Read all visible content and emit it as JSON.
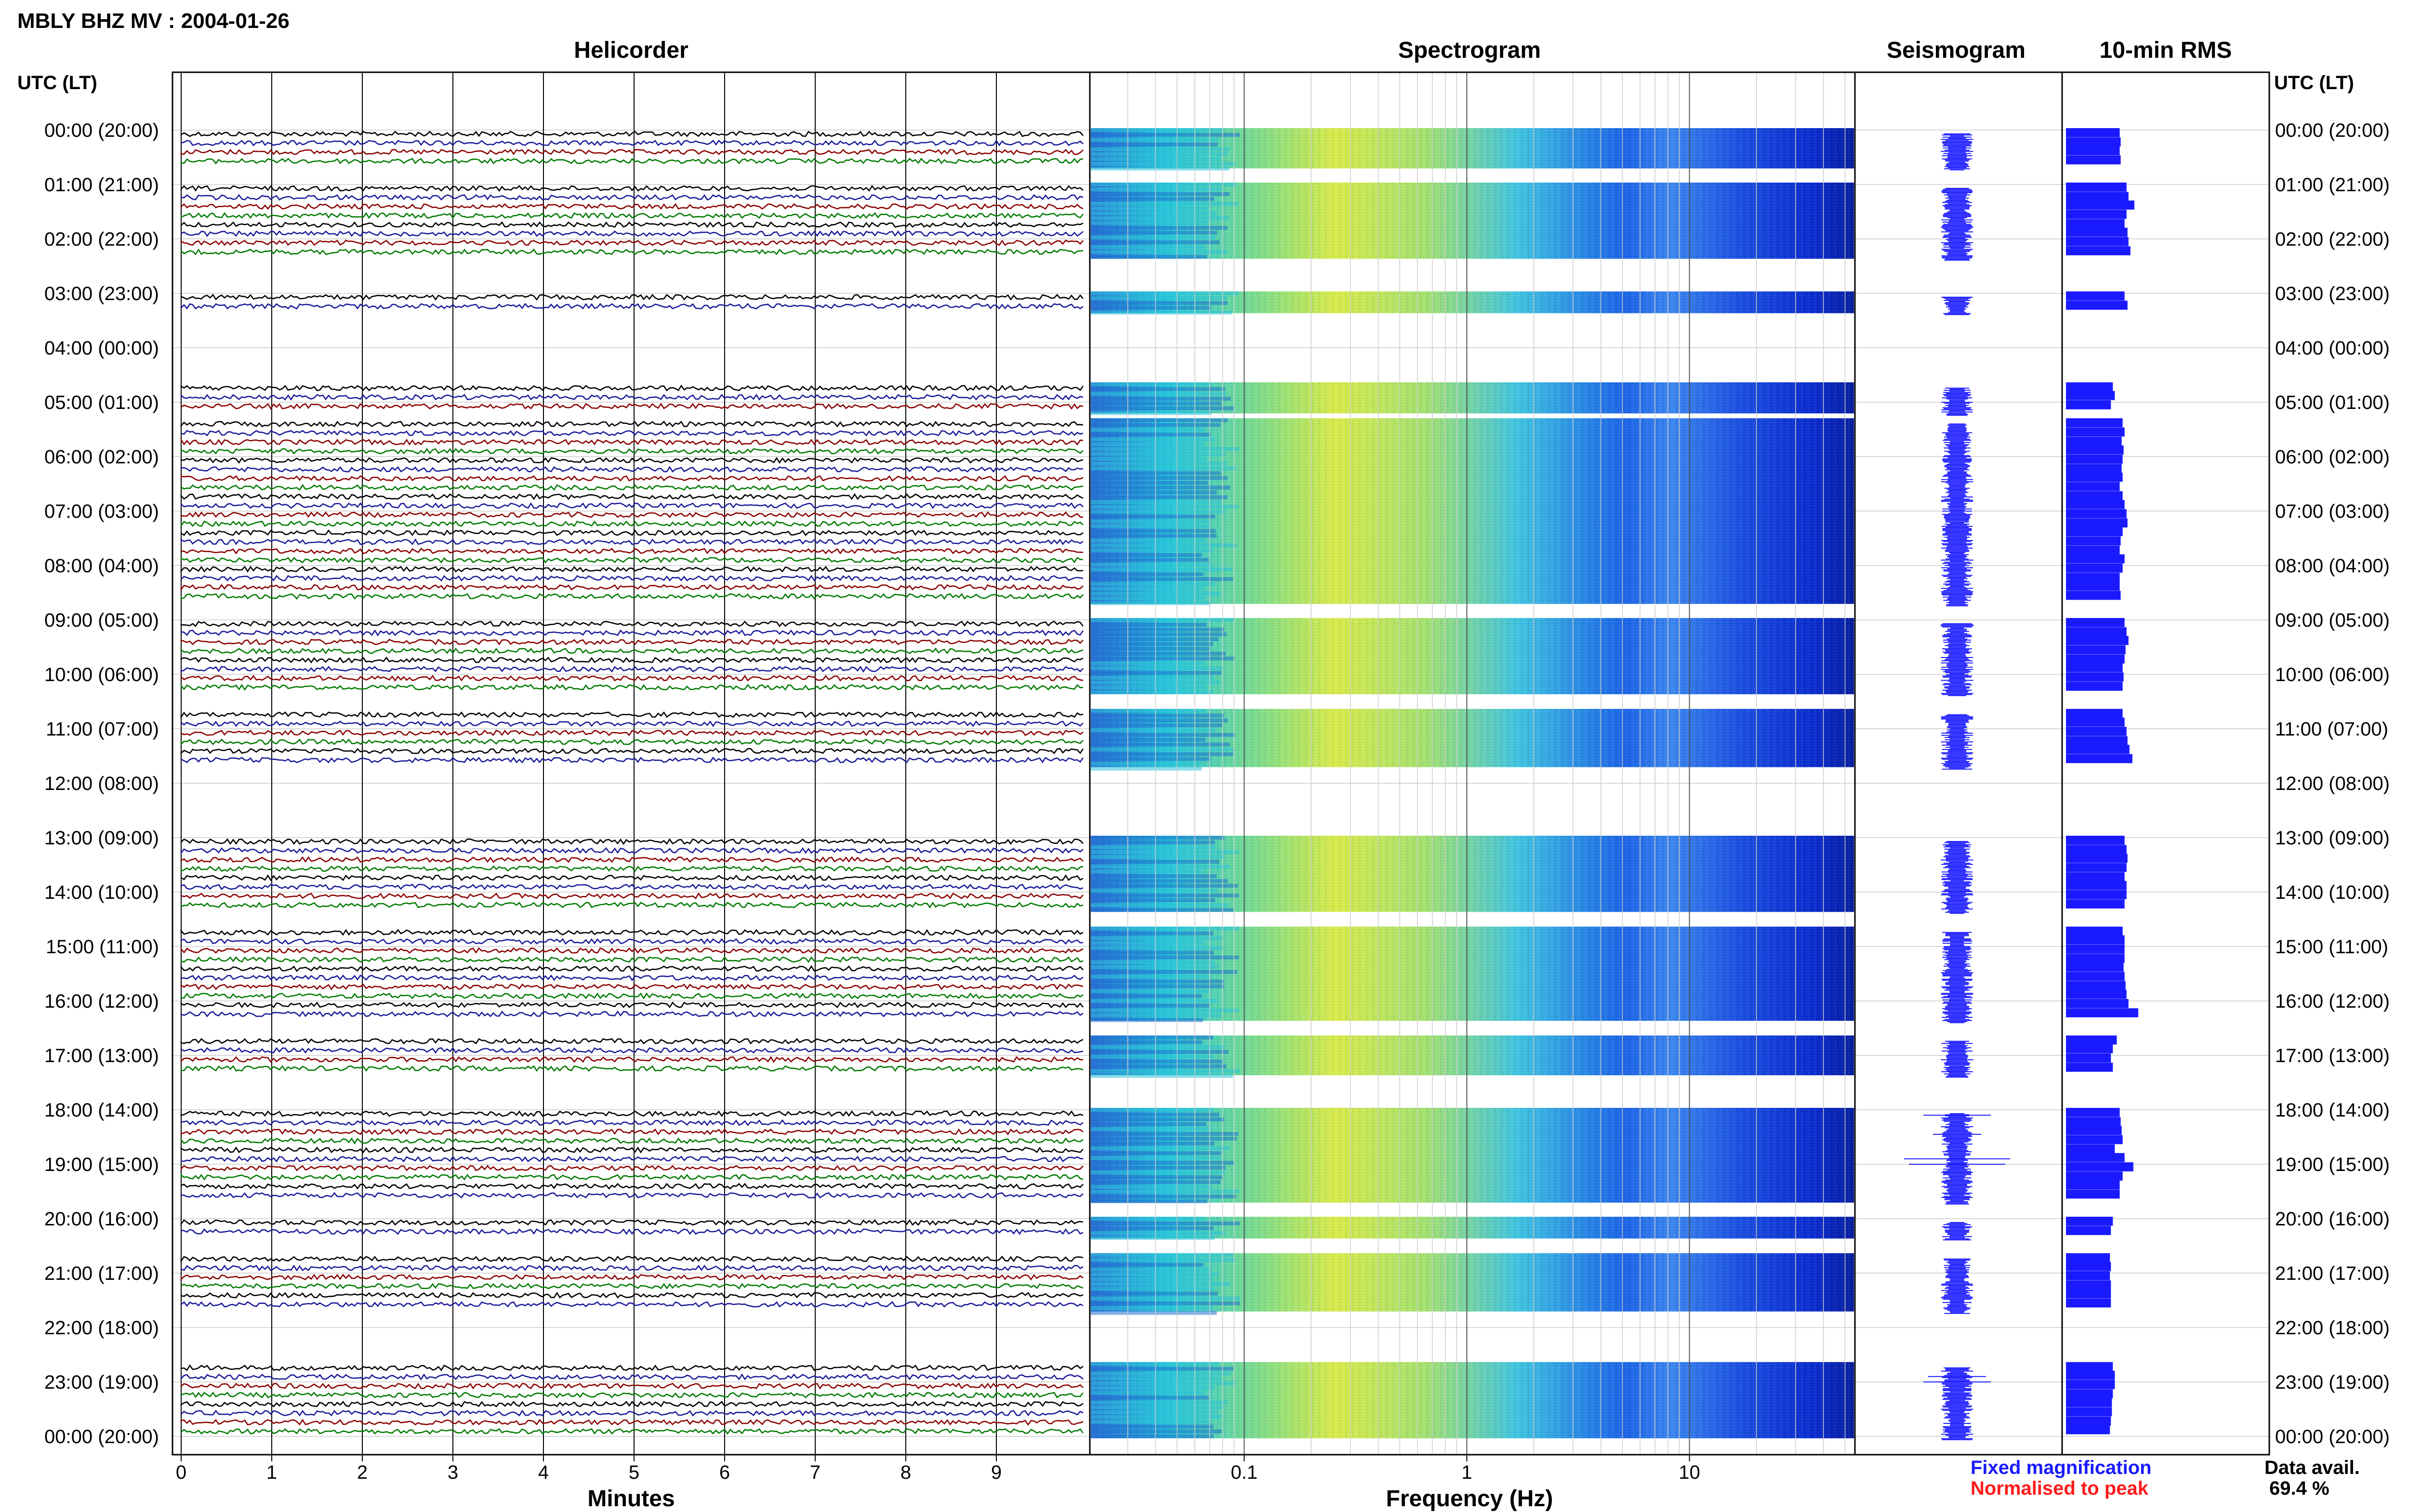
{
  "header": {
    "station_title": "MBLY BHZ MV : 2004-01-26",
    "utc_header_left": "UTC (LT)",
    "utc_header_right": "UTC (LT)"
  },
  "panels": {
    "helicorder": "Helicorder",
    "spectrogram": "Spectrogram",
    "seismogram": "Seismogram",
    "rms": "10-min RMS"
  },
  "axes": {
    "minutes_label": "Minutes",
    "frequency_label": "Frequency (Hz)",
    "minute_ticks": [
      "0",
      "1",
      "2",
      "3",
      "4",
      "5",
      "6",
      "7",
      "8",
      "9"
    ],
    "freq_ticks": [
      "0.1",
      "1",
      "10"
    ]
  },
  "legend": {
    "fixed": "Fixed magnification",
    "normalised": "Normalised to peak",
    "fixed_color": "#1a1aff",
    "normalised_color": "#ff1a1a"
  },
  "availability": {
    "label": "Data avail.",
    "value": "69.4 %"
  },
  "chart_data": {
    "type": "heatmap",
    "time_labels": [
      "00:00 (20:00)",
      "01:00 (21:00)",
      "02:00 (22:00)",
      "03:00 (23:00)",
      "04:00 (00:00)",
      "05:00 (01:00)",
      "06:00 (02:00)",
      "07:00 (03:00)",
      "08:00 (04:00)",
      "09:00 (05:00)",
      "10:00 (06:00)",
      "11:00 (07:00)",
      "12:00 (08:00)",
      "13:00 (09:00)",
      "14:00 (10:00)",
      "15:00 (11:00)",
      "16:00 (12:00)",
      "17:00 (13:00)",
      "18:00 (14:00)",
      "19:00 (15:00)",
      "20:00 (16:00)",
      "21:00 (17:00)",
      "22:00 (18:00)",
      "23:00 (19:00)",
      "00:00 (20:00)"
    ],
    "helicorder_colors": [
      "#000000",
      "#1a1a99",
      "#8b0000",
      "#007a00"
    ],
    "segments_hours": [
      [
        0,
        0.67
      ],
      [
        1,
        2.33
      ],
      [
        3,
        3.33
      ],
      [
        4.67,
        5.17
      ],
      [
        5.33,
        8.67
      ],
      [
        9,
        10.33
      ],
      [
        10.67,
        11.67
      ],
      [
        13,
        14.33
      ],
      [
        14.67,
        16.33
      ],
      [
        16.67,
        17.33
      ],
      [
        18,
        19.67
      ],
      [
        20,
        20.33
      ],
      [
        20.67,
        21.67
      ],
      [
        22.67,
        24
      ]
    ],
    "rms_values_per_10min": [
      [
        0,
        0.55
      ],
      [
        0.17,
        0.56
      ],
      [
        0.33,
        0.55
      ],
      [
        0.5,
        0.56
      ],
      [
        1,
        0.62
      ],
      [
        1.17,
        0.64
      ],
      [
        1.33,
        0.7
      ],
      [
        1.5,
        0.62
      ],
      [
        1.67,
        0.6
      ],
      [
        1.83,
        0.63
      ],
      [
        2,
        0.64
      ],
      [
        2.17,
        0.66
      ],
      [
        3,
        0.6
      ],
      [
        3.17,
        0.63
      ],
      [
        4.67,
        0.48
      ],
      [
        4.83,
        0.5
      ],
      [
        5,
        0.46
      ],
      [
        5.33,
        0.58
      ],
      [
        5.5,
        0.6
      ],
      [
        5.67,
        0.57
      ],
      [
        5.83,
        0.59
      ],
      [
        6,
        0.58
      ],
      [
        6.17,
        0.57
      ],
      [
        6.33,
        0.58
      ],
      [
        6.5,
        0.55
      ],
      [
        6.67,
        0.58
      ],
      [
        6.83,
        0.6
      ],
      [
        7,
        0.62
      ],
      [
        7.17,
        0.63
      ],
      [
        7.33,
        0.58
      ],
      [
        7.5,
        0.56
      ],
      [
        7.67,
        0.55
      ],
      [
        7.83,
        0.6
      ],
      [
        8,
        0.58
      ],
      [
        8.17,
        0.55
      ],
      [
        8.33,
        0.55
      ],
      [
        8.5,
        0.56
      ],
      [
        9,
        0.6
      ],
      [
        9.17,
        0.62
      ],
      [
        9.33,
        0.64
      ],
      [
        9.5,
        0.61
      ],
      [
        9.67,
        0.6
      ],
      [
        9.83,
        0.58
      ],
      [
        10,
        0.59
      ],
      [
        10.17,
        0.58
      ],
      [
        10.67,
        0.58
      ],
      [
        10.83,
        0.6
      ],
      [
        11,
        0.62
      ],
      [
        11.17,
        0.63
      ],
      [
        11.33,
        0.65
      ],
      [
        11.5,
        0.68
      ],
      [
        13,
        0.6
      ],
      [
        13.17,
        0.62
      ],
      [
        13.33,
        0.63
      ],
      [
        13.5,
        0.62
      ],
      [
        13.67,
        0.6
      ],
      [
        13.83,
        0.62
      ],
      [
        14,
        0.62
      ],
      [
        14.17,
        0.6
      ],
      [
        14.67,
        0.58
      ],
      [
        14.83,
        0.6
      ],
      [
        15,
        0.6
      ],
      [
        15.17,
        0.6
      ],
      [
        15.33,
        0.59
      ],
      [
        15.5,
        0.6
      ],
      [
        15.67,
        0.61
      ],
      [
        15.83,
        0.62
      ],
      [
        16,
        0.64
      ],
      [
        16.17,
        0.74
      ],
      [
        16.67,
        0.52
      ],
      [
        16.83,
        0.48
      ],
      [
        17,
        0.46
      ],
      [
        17.17,
        0.48
      ],
      [
        18,
        0.55
      ],
      [
        18.17,
        0.56
      ],
      [
        18.33,
        0.57
      ],
      [
        18.5,
        0.58
      ],
      [
        18.67,
        0.5
      ],
      [
        18.83,
        0.6
      ],
      [
        19,
        0.69
      ],
      [
        19.17,
        0.58
      ],
      [
        19.33,
        0.55
      ],
      [
        19.5,
        0.55
      ],
      [
        20,
        0.48
      ],
      [
        20.17,
        0.46
      ],
      [
        20.67,
        0.45
      ],
      [
        20.83,
        0.46
      ],
      [
        21,
        0.45
      ],
      [
        21.17,
        0.46
      ],
      [
        21.33,
        0.46
      ],
      [
        21.5,
        0.46
      ],
      [
        22.67,
        0.48
      ],
      [
        22.83,
        0.5
      ],
      [
        23,
        0.5
      ],
      [
        23.17,
        0.48
      ],
      [
        23.33,
        0.47
      ],
      [
        23.5,
        0.47
      ],
      [
        23.67,
        0.46
      ],
      [
        23.83,
        0.45
      ]
    ]
  }
}
